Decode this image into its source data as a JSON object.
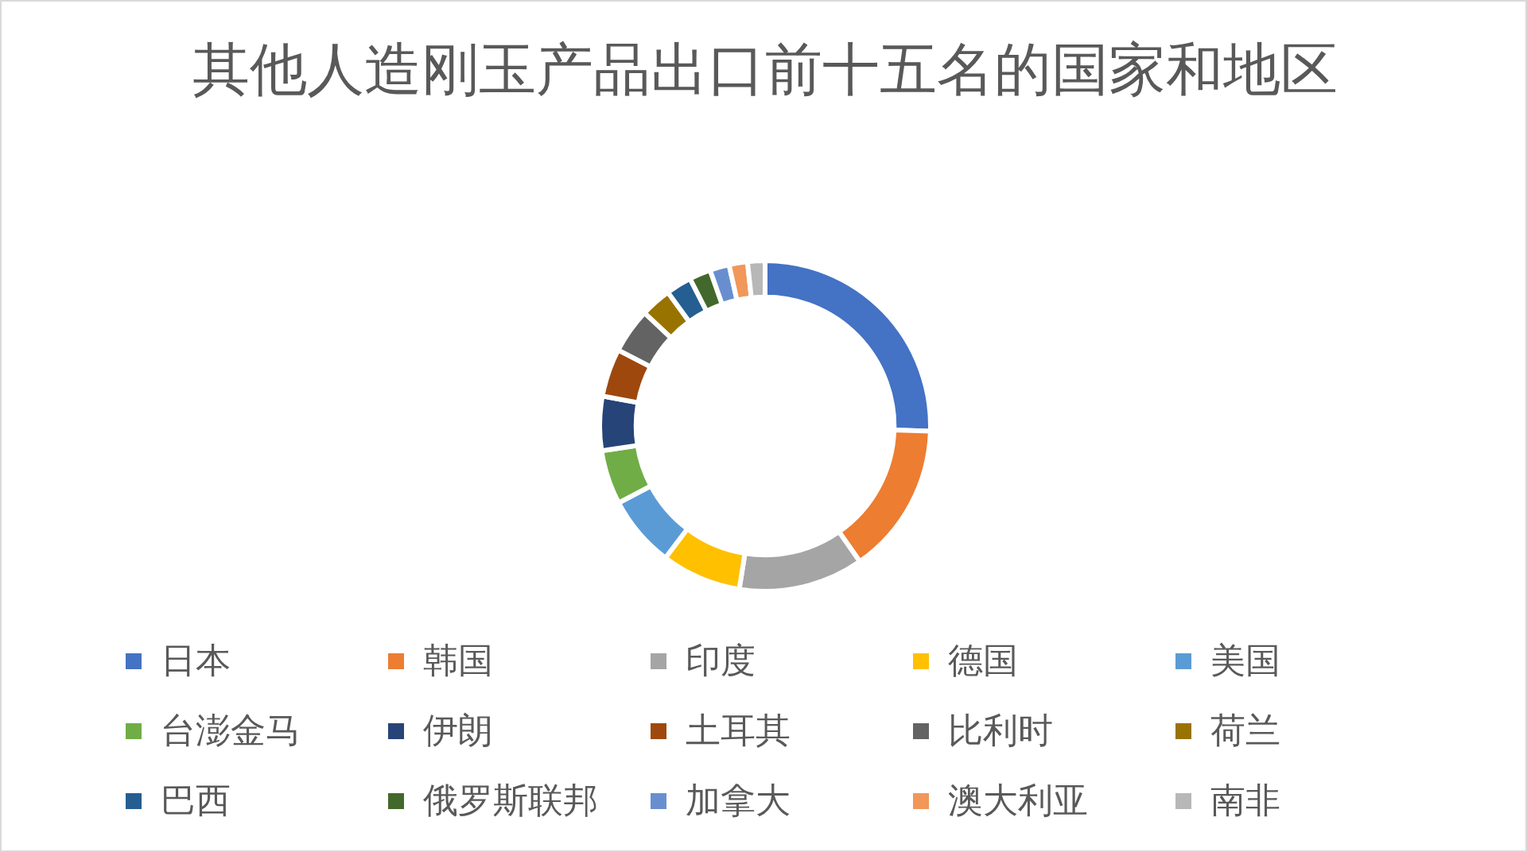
{
  "chart_data": {
    "type": "donut",
    "title": "其他人造刚玉产品出口前十五名的国家和地区",
    "categories": [
      "日本",
      "韩国",
      "印度",
      "德国",
      "美国",
      "台澎金马",
      "伊朗",
      "土耳其",
      "比利时",
      "荷兰",
      "巴西",
      "俄罗斯联邦",
      "加拿大",
      "澳大利亚",
      "南非"
    ],
    "values": [
      25.5,
      14.8,
      12.2,
      7.8,
      7,
      5.3,
      5.3,
      4.7,
      4.4,
      3,
      2.5,
      2.1,
      1.9,
      1.8,
      1.7
    ],
    "colors": [
      "#4472c4",
      "#ed7d31",
      "#a5a5a5",
      "#ffc000",
      "#5b9bd5",
      "#70ad47",
      "#264478",
      "#9e480e",
      "#636363",
      "#997300",
      "#255e91",
      "#43682b",
      "#698ed0",
      "#f1975a",
      "#b7b7b7"
    ],
    "legend": "bottom"
  }
}
